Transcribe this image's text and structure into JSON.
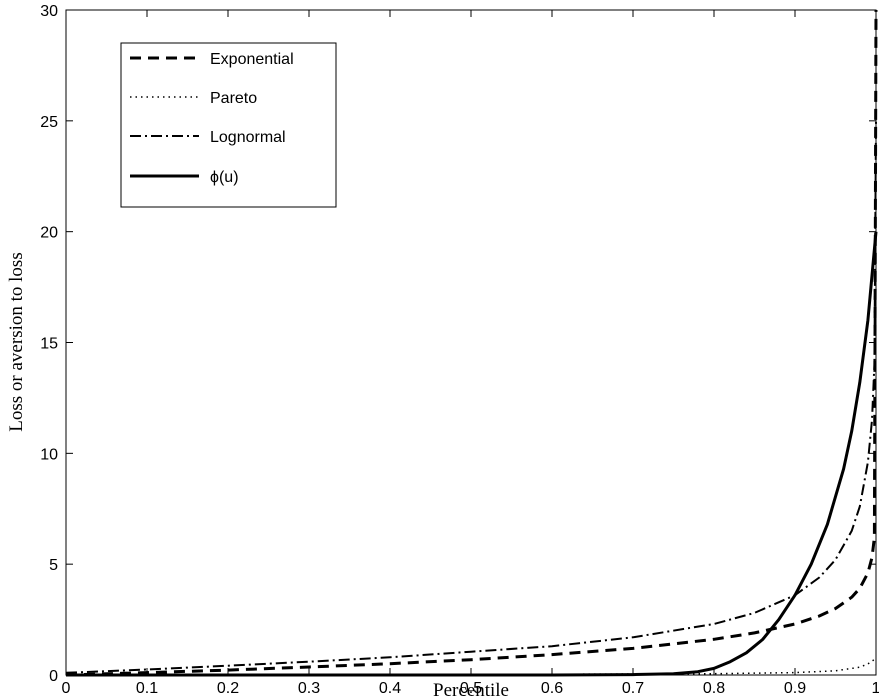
{
  "chart_data": {
    "type": "line",
    "xlabel": "Percentile",
    "ylabel": "Loss or aversion to loss",
    "xlim": [
      0,
      1
    ],
    "ylim": [
      0,
      30
    ],
    "xticks": [
      "0",
      "0.1",
      "0.2",
      "0.3",
      "0.4",
      "0.5",
      "0.6",
      "0.7",
      "0.8",
      "0.9",
      "1"
    ],
    "yticks": [
      "0",
      "5",
      "10",
      "15",
      "20",
      "25",
      "30"
    ],
    "grid": false,
    "legend_position": "top-left",
    "series": [
      {
        "name": "Exponential",
        "style": "dashed",
        "x": [
          0,
          0.1,
          0.2,
          0.3,
          0.4,
          0.5,
          0.6,
          0.7,
          0.8,
          0.85,
          0.9,
          0.93,
          0.95,
          0.97,
          0.98,
          0.99,
          0.995,
          0.998,
          1
        ],
        "y": [
          0,
          0.11,
          0.22,
          0.36,
          0.51,
          0.69,
          0.92,
          1.2,
          1.61,
          1.9,
          2.3,
          2.66,
          3.0,
          3.51,
          3.91,
          4.6,
          5.3,
          6.2,
          30
        ]
      },
      {
        "name": "Pareto",
        "style": "dotted",
        "x": [
          0,
          0.5,
          0.8,
          0.9,
          0.95,
          0.98,
          0.99,
          1
        ],
        "y": [
          0,
          0.02,
          0.06,
          0.11,
          0.19,
          0.35,
          0.5,
          0.75
        ]
      },
      {
        "name": "Lognormal",
        "style": "dash-dot",
        "x": [
          0,
          0.1,
          0.2,
          0.3,
          0.4,
          0.5,
          0.6,
          0.7,
          0.8,
          0.85,
          0.9,
          0.93,
          0.95,
          0.97,
          0.98,
          0.99,
          0.995,
          0.998,
          1
        ],
        "y": [
          0.1,
          0.25,
          0.42,
          0.6,
          0.8,
          1.05,
          1.3,
          1.7,
          2.3,
          2.8,
          3.6,
          4.4,
          5.2,
          6.5,
          7.6,
          9.6,
          11.5,
          14.0,
          25
        ]
      },
      {
        "name": "ϕ(u)",
        "style": "solid",
        "x": [
          0,
          0.6,
          0.7,
          0.75,
          0.78,
          0.8,
          0.82,
          0.84,
          0.86,
          0.88,
          0.9,
          0.92,
          0.94,
          0.96,
          0.97,
          0.98,
          0.99,
          1
        ],
        "y": [
          0,
          0,
          0.02,
          0.06,
          0.15,
          0.3,
          0.6,
          1.0,
          1.6,
          2.5,
          3.6,
          5.0,
          6.8,
          9.3,
          11.0,
          13.2,
          16.0,
          20.0
        ]
      }
    ]
  }
}
